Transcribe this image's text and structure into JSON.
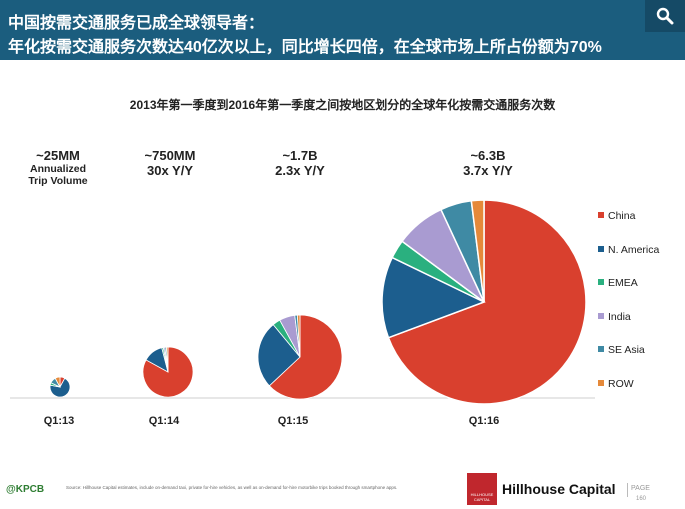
{
  "header": {
    "title_line1": "中国按需交通服务已成全球领导者：",
    "title_line2": "年化按需交通服务次数达40亿次以上，同比增长四倍，在全球市场上所占份额为70%"
  },
  "icons": {
    "search": "search-icon"
  },
  "chart_data": {
    "type": "pie",
    "title": "2013年第一季度到2016年第一季度之间按地区划分的全球年化按需交通服务次数",
    "categories": [
      "China",
      "N. America",
      "EMEA",
      "India",
      "SE Asia",
      "ROW"
    ],
    "colors": [
      "#d9402e",
      "#1c5e8e",
      "#2ab07f",
      "#a99bd1",
      "#3f8aa4",
      "#e5893a"
    ],
    "legend_position": "right",
    "pies": [
      {
        "label": "Q1:13",
        "headline": "~25MM",
        "sub1": "Annualized",
        "sub2": "Trip Volume",
        "total_trips_mm": 25,
        "shares_pct": [
          8,
          70,
          4,
          0,
          10,
          8
        ]
      },
      {
        "label": "Q1:14",
        "headline": "~750MM",
        "sub1": "30x Y/Y",
        "sub2": "",
        "total_trips_mm": 750,
        "shares_pct": [
          83,
          13,
          1,
          1,
          1,
          1
        ]
      },
      {
        "label": "Q1:15",
        "headline": "~1.7B",
        "sub1": "2.3x Y/Y",
        "sub2": "",
        "total_trips_mm": 1700,
        "shares_pct": [
          63,
          26,
          3,
          6,
          1,
          1
        ]
      },
      {
        "label": "Q1:16",
        "headline": "~6.3B",
        "sub1": "3.7x Y/Y",
        "sub2": "",
        "total_trips_mm": 6300,
        "shares_pct": [
          70,
          13,
          3,
          8,
          5,
          2
        ]
      }
    ]
  },
  "footer": {
    "source": "Source: Hillhouse Capital estimates, include on-demand taxi, private for-hire vehicles, as well as on-demand for-hire motorbike trips booked through smartphone apps.",
    "kpcb": "@KPCB",
    "logo_text": "HILLHOUSE CAPITAL",
    "company": "Hillhouse Capital",
    "page_label": "PAGE",
    "page_number": "160"
  }
}
